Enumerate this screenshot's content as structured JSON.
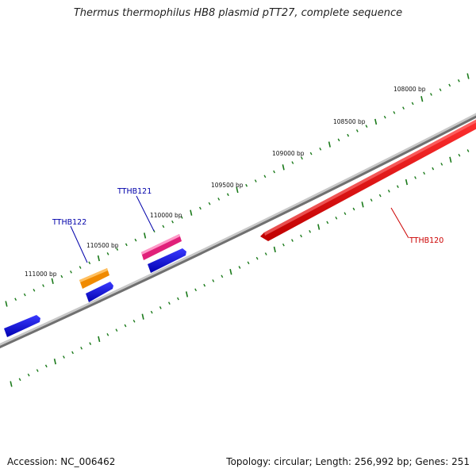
{
  "title": "Thermus thermophilus HB8 plasmid pTT27, complete sequence",
  "footer": {
    "accession": "Accession: NC_006462",
    "summary": "Topology: circular; Length: 256,992 bp; Genes: 251"
  },
  "positions": {
    "p108000": "108000 bp",
    "p108500": "108500 bp",
    "p109000": "109000 bp",
    "p109500": "109500 bp",
    "p110000": "110000 bp",
    "p110500": "110500 bp",
    "p111000": "111000 bp"
  },
  "genes": {
    "tthb120": "TTHB120",
    "tthb121": "TTHB121",
    "tthb122": "TTHB122"
  },
  "colors": {
    "backbone": "#808080",
    "forward_gene": "#1010e0",
    "reverse_gene": "#e00000",
    "tthb121": "#e0207a",
    "tthb122": "#f08a00",
    "tick": "#1a7a1a",
    "label_blue": "#0000aa",
    "label_red": "#cc0000"
  }
}
